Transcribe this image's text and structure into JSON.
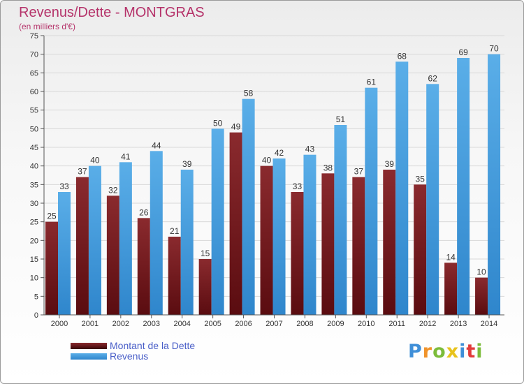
{
  "title": "Revenus/Dette - MONTGRAS",
  "subtitle": "(en milliers d'€)",
  "logo": {
    "text": "Proxiti"
  },
  "colors": {
    "dette": "#6e1318",
    "revenus": "#3f96d8",
    "title": "#b5336a",
    "legend_text": "#4a5fc8"
  },
  "legend": {
    "dette_label": "Montant de la Dette",
    "revenus_label": "Revenus"
  },
  "chart_data": {
    "type": "bar",
    "title": "Revenus/Dette - MONTGRAS",
    "ylabel": "(en milliers d'€)",
    "xlabel": "",
    "ylim": [
      0,
      75
    ],
    "ytick_step": 5,
    "grid": true,
    "legend_position": "bottom-left",
    "categories": [
      "2000",
      "2001",
      "2002",
      "2003",
      "2004",
      "2005",
      "2006",
      "2007",
      "2008",
      "2009",
      "2010",
      "2011",
      "2012",
      "2013",
      "2014"
    ],
    "series": [
      {
        "name": "Montant de la Dette",
        "values": [
          25,
          37,
          32,
          26,
          21,
          15,
          49,
          40,
          33,
          38,
          37,
          39,
          35,
          14,
          10
        ]
      },
      {
        "name": "Revenus",
        "values": [
          33,
          40,
          41,
          44,
          39,
          50,
          58,
          42,
          43,
          51,
          61,
          68,
          62,
          69,
          70
        ]
      }
    ]
  }
}
